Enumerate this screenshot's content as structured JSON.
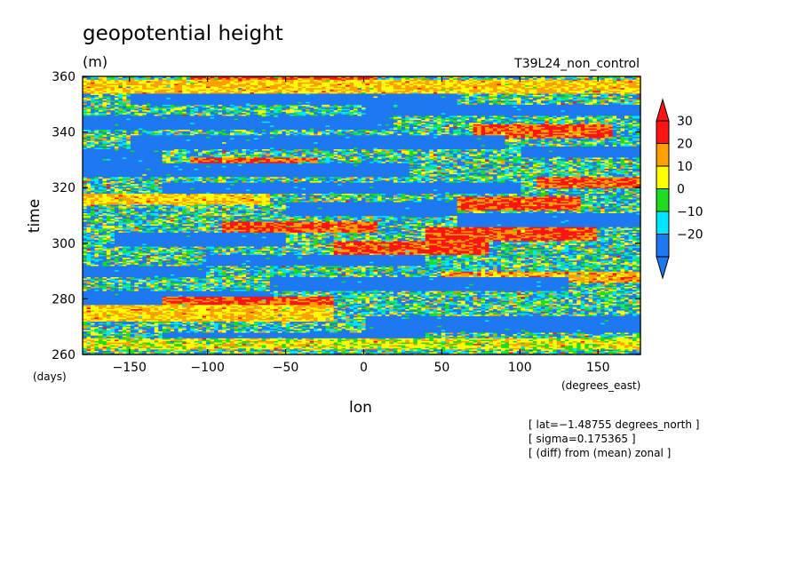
{
  "chart_data": {
    "type": "heatmap",
    "title": "geopotential height",
    "units": "(m)",
    "run_label": "T39L24_non_control",
    "xlabel": "lon",
    "ylabel": "time",
    "x_units": "(degrees_east)",
    "y_units": "(days)",
    "xlim": [
      -180,
      177.19
    ],
    "ylim": [
      260,
      360
    ],
    "x_ticks": [
      -150,
      -100,
      -50,
      0,
      50,
      100,
      150
    ],
    "x_tick_labels": [
      "−150",
      "−100",
      "−50",
      "0",
      "50",
      "100",
      "150"
    ],
    "y_ticks": [
      260,
      280,
      300,
      320,
      340,
      360
    ],
    "y_tick_labels": [
      "260",
      "280",
      "300",
      "320",
      "340",
      "360"
    ],
    "colorbar": {
      "levels": [
        -20,
        -10,
        0,
        10,
        20,
        30
      ],
      "level_labels": [
        "−20",
        "−10",
        "0",
        "10",
        "20",
        "30"
      ],
      "colors": [
        "#1e78f0",
        "#00e6ff",
        "#1edc1e",
        "#ffff00",
        "#ffa000",
        "#ff1414"
      ],
      "extend": "both"
    },
    "bands": [
      {
        "t0": 262,
        "t1": 266,
        "lon0": -180,
        "lon1": 180,
        "v": 15
      },
      {
        "t0": 266,
        "t1": 268,
        "lon0": -130,
        "lon1": 40,
        "v": -25
      },
      {
        "t0": 268,
        "t1": 274,
        "lon0": 0,
        "lon1": 180,
        "v": -25
      },
      {
        "t0": 272,
        "t1": 278,
        "lon0": -180,
        "lon1": -20,
        "v": 20
      },
      {
        "t0": 276,
        "t1": 281,
        "lon0": -130,
        "lon1": -20,
        "v": 32
      },
      {
        "t0": 278,
        "t1": 283,
        "lon0": -180,
        "lon1": -60,
        "v": -25
      },
      {
        "t0": 283,
        "t1": 288,
        "lon0": -60,
        "lon1": 130,
        "v": -25
      },
      {
        "t0": 286,
        "t1": 290,
        "lon0": 50,
        "lon1": 180,
        "v": 25
      },
      {
        "t0": 288,
        "t1": 292,
        "lon0": -180,
        "lon1": -100,
        "v": -25
      },
      {
        "t0": 292,
        "t1": 296,
        "lon0": -100,
        "lon1": 40,
        "v": -25
      },
      {
        "t0": 296,
        "t1": 301,
        "lon0": -20,
        "lon1": 80,
        "v": 32
      },
      {
        "t0": 299,
        "t1": 304,
        "lon0": -160,
        "lon1": -50,
        "v": -25
      },
      {
        "t0": 301,
        "t1": 306,
        "lon0": 40,
        "lon1": 150,
        "v": 32
      },
      {
        "t0": 304,
        "t1": 308,
        "lon0": -90,
        "lon1": 10,
        "v": 32
      },
      {
        "t0": 306,
        "t1": 311,
        "lon0": 60,
        "lon1": 180,
        "v": -25
      },
      {
        "t0": 310,
        "t1": 315,
        "lon0": -50,
        "lon1": 60,
        "v": -25
      },
      {
        "t0": 312,
        "t1": 317,
        "lon0": 60,
        "lon1": 140,
        "v": 32
      },
      {
        "t0": 314,
        "t1": 318,
        "lon0": -180,
        "lon1": -60,
        "v": 20
      },
      {
        "t0": 318,
        "t1": 322,
        "lon0": -130,
        "lon1": 100,
        "v": -25
      },
      {
        "t0": 320,
        "t1": 324,
        "lon0": 110,
        "lon1": 180,
        "v": 32
      },
      {
        "t0": 324,
        "t1": 329,
        "lon0": -180,
        "lon1": 30,
        "v": -25
      },
      {
        "t0": 326,
        "t1": 331,
        "lon0": -110,
        "lon1": -30,
        "v": 32
      },
      {
        "t0": 329,
        "t1": 334,
        "lon0": -180,
        "lon1": -130,
        "v": -25
      },
      {
        "t0": 331,
        "t1": 335,
        "lon0": 100,
        "lon1": 180,
        "v": -25
      },
      {
        "t0": 334,
        "t1": 339,
        "lon0": -150,
        "lon1": 90,
        "v": -25
      },
      {
        "t0": 338,
        "t1": 343,
        "lon0": 70,
        "lon1": 160,
        "v": 32
      },
      {
        "t0": 341,
        "t1": 346,
        "lon0": -180,
        "lon1": 20,
        "v": -25
      },
      {
        "t0": 346,
        "t1": 350,
        "lon0": 0,
        "lon1": 180,
        "v": -25
      },
      {
        "t0": 350,
        "t1": 354,
        "lon0": -150,
        "lon1": 60,
        "v": -25
      },
      {
        "t0": 354,
        "t1": 359,
        "lon0": -180,
        "lon1": 180,
        "v": 20
      },
      {
        "t0": 356,
        "t1": 360,
        "lon0": -110,
        "lon1": 10,
        "v": 32
      }
    ]
  },
  "annotations": [
    "[ lat=−1.48755 degrees_north ]",
    "[ sigma=0.175365 ]",
    "[ (diff) from (mean) zonal ]"
  ]
}
